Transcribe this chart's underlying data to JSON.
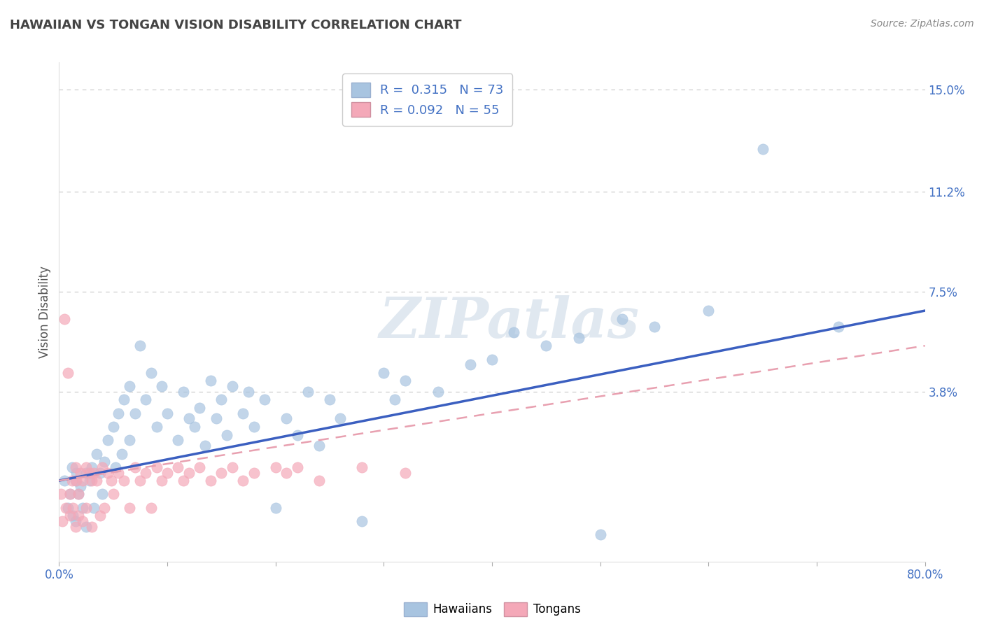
{
  "title": "HAWAIIAN VS TONGAN VISION DISABILITY CORRELATION CHART",
  "source": "Source: ZipAtlas.com",
  "ylabel": "Vision Disability",
  "xlim": [
    0.0,
    0.8
  ],
  "ylim": [
    -0.025,
    0.16
  ],
  "yticks": [
    0.038,
    0.075,
    0.112,
    0.15
  ],
  "ytick_labels": [
    "3.8%",
    "7.5%",
    "11.2%",
    "15.0%"
  ],
  "xticks": [
    0.0,
    0.1,
    0.2,
    0.3,
    0.4,
    0.5,
    0.6,
    0.7,
    0.8
  ],
  "xtick_labels": [
    "0.0%",
    "",
    "",
    "",
    "",
    "",
    "",
    "",
    "80.0%"
  ],
  "background_color": "#ffffff",
  "grid_color": "#c8c8c8",
  "hawaiian_color": "#a8c4e0",
  "tongan_color": "#f4a8b8",
  "hawaiian_line_color": "#3b5fc0",
  "tongan_line_color": "#e8a0b0",
  "watermark": "ZIPatlas",
  "legend_R_hawaiian": "R =  0.315",
  "legend_N_hawaiian": "N = 73",
  "legend_R_tongan": "R = 0.092",
  "legend_N_tongan": "N = 55",
  "hawaiian_scatter_x": [
    0.005,
    0.008,
    0.01,
    0.012,
    0.013,
    0.015,
    0.015,
    0.016,
    0.018,
    0.02,
    0.022,
    0.025,
    0.025,
    0.028,
    0.03,
    0.032,
    0.035,
    0.038,
    0.04,
    0.042,
    0.045,
    0.05,
    0.052,
    0.055,
    0.058,
    0.06,
    0.065,
    0.065,
    0.07,
    0.075,
    0.08,
    0.085,
    0.09,
    0.095,
    0.1,
    0.11,
    0.115,
    0.12,
    0.125,
    0.13,
    0.135,
    0.14,
    0.145,
    0.15,
    0.155,
    0.16,
    0.17,
    0.175,
    0.18,
    0.19,
    0.2,
    0.21,
    0.22,
    0.23,
    0.24,
    0.25,
    0.26,
    0.28,
    0.3,
    0.31,
    0.32,
    0.35,
    0.38,
    0.4,
    0.42,
    0.45,
    0.48,
    0.5,
    0.52,
    0.55,
    0.6,
    0.65,
    0.72
  ],
  "hawaiian_scatter_y": [
    0.005,
    -0.005,
    0.0,
    0.01,
    -0.008,
    0.005,
    -0.01,
    0.008,
    0.0,
    0.003,
    -0.005,
    0.008,
    -0.012,
    0.005,
    0.01,
    -0.005,
    0.015,
    0.008,
    0.0,
    0.012,
    0.02,
    0.025,
    0.01,
    0.03,
    0.015,
    0.035,
    0.04,
    0.02,
    0.03,
    0.055,
    0.035,
    0.045,
    0.025,
    0.04,
    0.03,
    0.02,
    0.038,
    0.028,
    0.025,
    0.032,
    0.018,
    0.042,
    0.028,
    0.035,
    0.022,
    0.04,
    0.03,
    0.038,
    0.025,
    0.035,
    -0.005,
    0.028,
    0.022,
    0.038,
    0.018,
    0.035,
    0.028,
    -0.01,
    0.045,
    0.035,
    0.042,
    0.038,
    0.048,
    0.05,
    0.06,
    0.055,
    0.058,
    -0.015,
    0.065,
    0.062,
    0.068,
    0.128,
    0.062
  ],
  "tongan_scatter_x": [
    0.002,
    0.003,
    0.005,
    0.006,
    0.008,
    0.01,
    0.01,
    0.012,
    0.013,
    0.015,
    0.015,
    0.016,
    0.018,
    0.018,
    0.02,
    0.022,
    0.022,
    0.025,
    0.025,
    0.028,
    0.03,
    0.03,
    0.032,
    0.035,
    0.038,
    0.04,
    0.042,
    0.045,
    0.048,
    0.05,
    0.055,
    0.06,
    0.065,
    0.07,
    0.075,
    0.08,
    0.085,
    0.09,
    0.095,
    0.1,
    0.11,
    0.115,
    0.12,
    0.13,
    0.14,
    0.15,
    0.16,
    0.17,
    0.18,
    0.2,
    0.21,
    0.22,
    0.24,
    0.28,
    0.32
  ],
  "tongan_scatter_y": [
    0.0,
    -0.01,
    0.065,
    -0.005,
    0.045,
    0.0,
    -0.008,
    0.005,
    -0.005,
    0.01,
    -0.012,
    0.005,
    0.0,
    -0.008,
    0.008,
    0.005,
    -0.01,
    0.01,
    -0.005,
    0.008,
    0.005,
    -0.012,
    0.008,
    0.005,
    -0.008,
    0.01,
    -0.005,
    0.008,
    0.005,
    0.0,
    0.008,
    0.005,
    -0.005,
    0.01,
    0.005,
    0.008,
    -0.005,
    0.01,
    0.005,
    0.008,
    0.01,
    0.005,
    0.008,
    0.01,
    0.005,
    0.008,
    0.01,
    0.005,
    0.008,
    0.01,
    0.008,
    0.01,
    0.005,
    0.01,
    0.008
  ],
  "hawaiian_trend_x": [
    0.0,
    0.8
  ],
  "hawaiian_trend_y": [
    0.005,
    0.068
  ],
  "tongan_trend_x": [
    0.0,
    0.8
  ],
  "tongan_trend_y": [
    0.005,
    0.055
  ]
}
